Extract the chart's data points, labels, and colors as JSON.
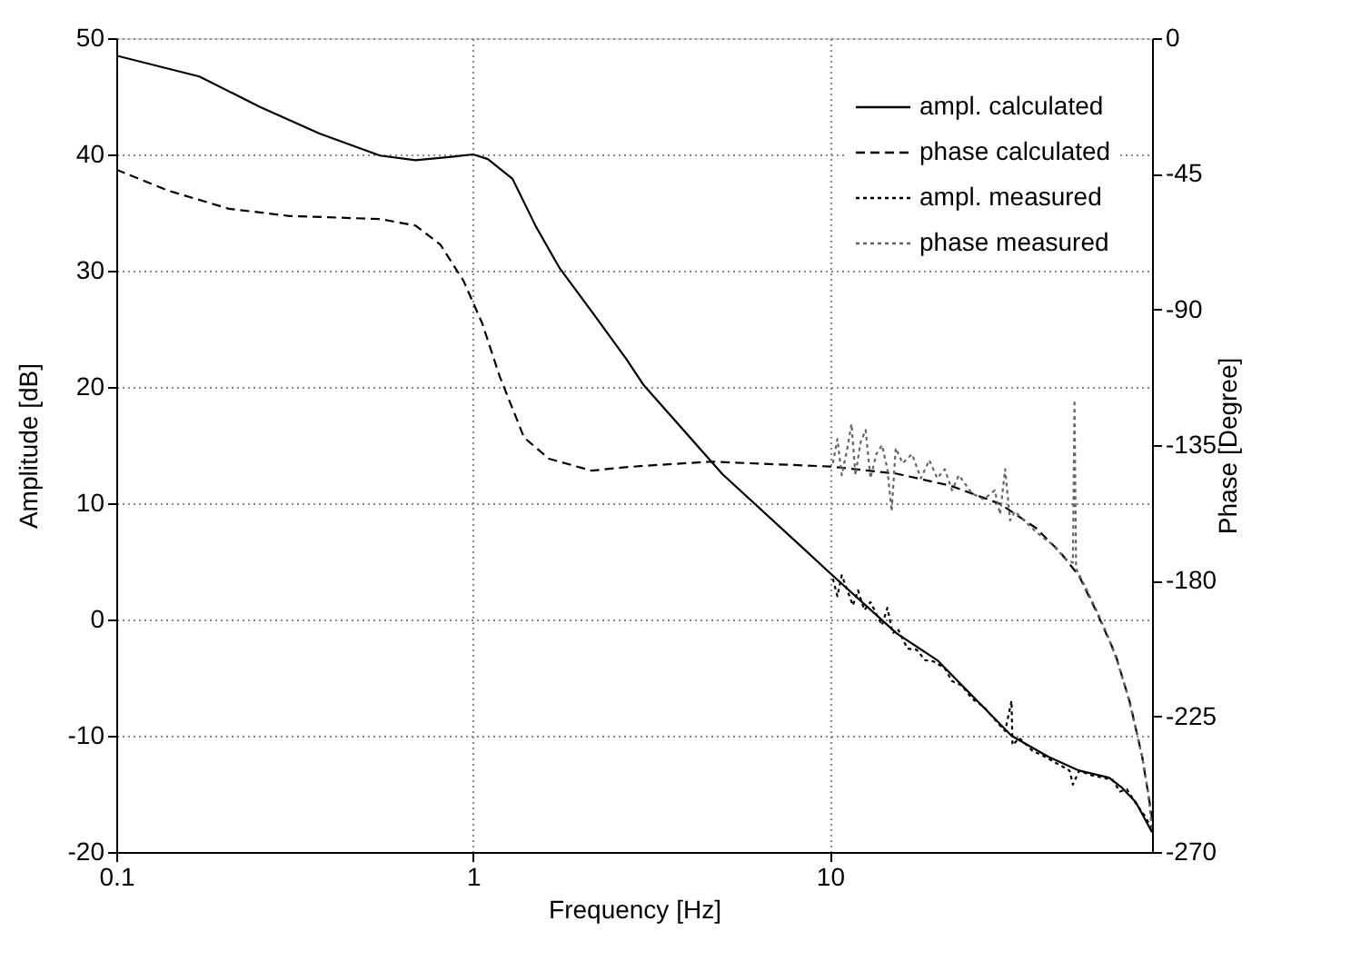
{
  "chart_data": {
    "type": "line",
    "xlabel": "Frequency [Hz]",
    "ylabel": "Amplitude [dB]",
    "y2label": "Phase [Degree]",
    "log": "x",
    "grid": true,
    "legend": "top right",
    "marker": "none",
    "xlim": [
      0.1,
      80
    ],
    "xticks": [
      0.1,
      1,
      10
    ],
    "ylim": [
      -20,
      50
    ],
    "yticks": [
      -20,
      -10,
      0,
      10,
      20,
      30,
      40,
      50
    ],
    "y2lim": [
      -270,
      0
    ],
    "y2ticks": [
      -270,
      -225,
      -180,
      -135,
      -90,
      -45,
      0
    ],
    "series": [
      {
        "name": "ampl. calculated",
        "color": "#000000",
        "line_style": "solid",
        "axis": "y",
        "x": [
          0.1,
          0.171,
          0.252,
          0.371,
          0.548,
          0.69,
          0.87,
          1.0,
          1.1,
          1.29,
          1.5,
          1.75,
          2.15,
          2.69,
          3.0,
          5.0,
          8.3,
          10,
          15.4,
          20,
          23.7,
          32.3,
          40.9,
          50,
          60.6,
          65.5,
          72,
          80
        ],
        "values": [
          48.5,
          46.7,
          44.1,
          41.8,
          39.9,
          39.5,
          39.8,
          40,
          39.6,
          37.9,
          33.8,
          30.2,
          26.5,
          22.4,
          20.2,
          12.5,
          6.3,
          4.0,
          -1.2,
          -3.5,
          -5.8,
          -10.0,
          -11.8,
          -13.0,
          -13.6,
          -14.4,
          -15.7,
          -18.3
        ]
      },
      {
        "name": "phase calculated",
        "color": "#000000",
        "line_style": "dashed",
        "axis": "y2",
        "x": [
          0.1,
          0.14,
          0.207,
          0.306,
          0.548,
          0.69,
          0.81,
          0.94,
          1.06,
          1.19,
          1.39,
          1.63,
          2.15,
          2.59,
          3.0,
          4.64,
          10,
          15.4,
          21.8,
          30,
          37.8,
          44.2,
          50,
          56,
          63.2,
          69.4,
          75.1,
          79.5,
          80
        ],
        "values": [
          -43.6,
          -50.6,
          -56.6,
          -59.0,
          -60.0,
          -62.2,
          -68.5,
          -80.5,
          -94.5,
          -112.5,
          -132.5,
          -139.5,
          -143.5,
          -142.5,
          -141.9,
          -140.5,
          -142.1,
          -144.5,
          -148.5,
          -154.5,
          -162.5,
          -170.5,
          -178.5,
          -190.5,
          -204.5,
          -220.5,
          -238.5,
          -256.5,
          -259
        ]
      },
      {
        "name": "ampl. measured",
        "color": "#000000",
        "line_style": "dotted",
        "axis": "y",
        "x": [
          10.2,
          10.5,
          10.8,
          11.2,
          11.6,
          12,
          12.5,
          13,
          14,
          14.5,
          15,
          15.5,
          16.5,
          17.5,
          18.5,
          19.5,
          21,
          22,
          23.5,
          25,
          27,
          29,
          31,
          32.3,
          32.5,
          34,
          37,
          40,
          44,
          47,
          48,
          50,
          54,
          58,
          62,
          65,
          68,
          72,
          76,
          80
        ],
        "values": [
          3.5,
          2,
          3.8,
          2.5,
          1.2,
          2.5,
          0.8,
          1.5,
          -0.5,
          1,
          -1.2,
          -0.8,
          -2.5,
          -2.6,
          -3.5,
          -3.6,
          -4.2,
          -5.3,
          -5.7,
          -6.8,
          -7.5,
          -8.6,
          -9.6,
          -7,
          -10.8,
          -10.2,
          -11.3,
          -11.8,
          -12.5,
          -13,
          -14.2,
          -13,
          -13.4,
          -13.6,
          -13.8,
          -14.8,
          -14.6,
          -15.8,
          -16.8,
          -18
        ]
      },
      {
        "name": "phase measured",
        "color": "#666666",
        "line_style": "dotted",
        "axis": "y2",
        "x": [
          10.2,
          10.5,
          10.8,
          11.2,
          11.5,
          11.8,
          12.2,
          12.6,
          13.0,
          13.5,
          14.0,
          14.5,
          14.9,
          15.3,
          16,
          17,
          18,
          19,
          20,
          21,
          22,
          23,
          25,
          27,
          29,
          30,
          31,
          32,
          33,
          35,
          38,
          42,
          46,
          48,
          48.5,
          49,
          52,
          56,
          60,
          64,
          68,
          72,
          75,
          78,
          80
        ],
        "values": [
          -141,
          -133,
          -145,
          -136,
          -128,
          -145,
          -134,
          -130,
          -146,
          -138,
          -135,
          -143,
          -157,
          -136,
          -141,
          -138,
          -146,
          -140,
          -146,
          -143,
          -150,
          -145,
          -151,
          -153,
          -150,
          -158,
          -143,
          -160,
          -157,
          -160,
          -164,
          -168,
          -173,
          -174,
          -120,
          -176,
          -182,
          -190,
          -198,
          -207,
          -217,
          -229,
          -238,
          -250,
          -263
        ]
      }
    ]
  }
}
